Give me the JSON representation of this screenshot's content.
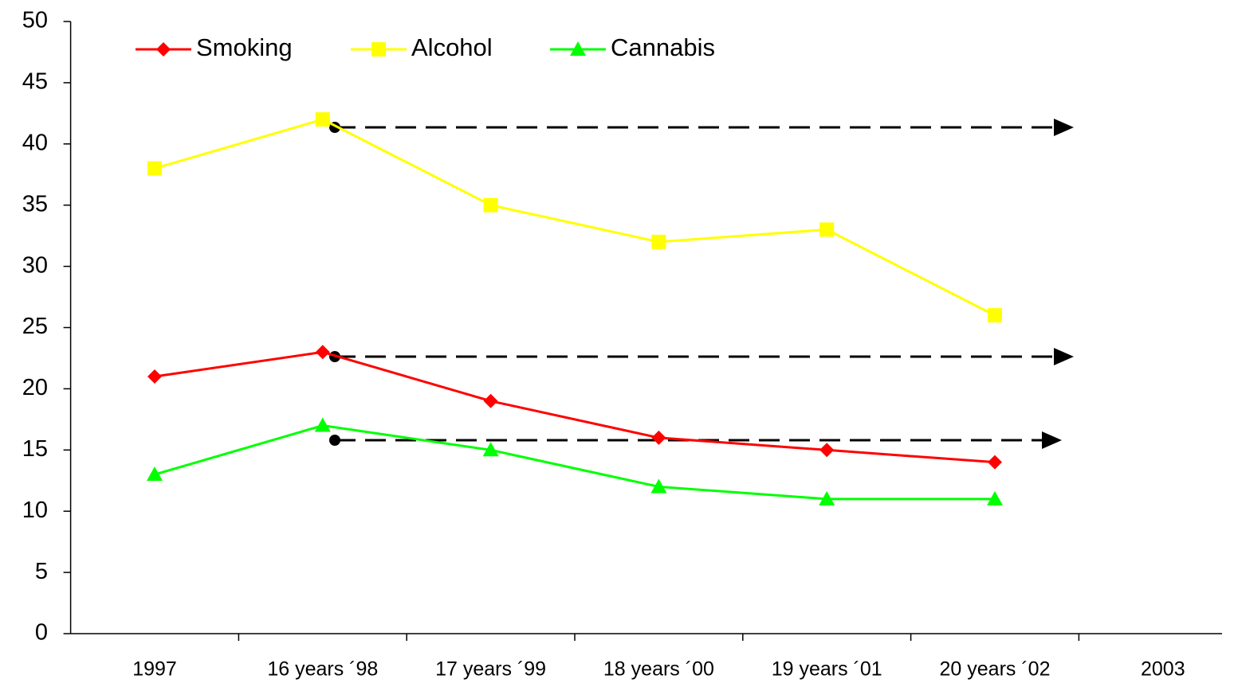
{
  "chart_data": {
    "type": "line",
    "categories": [
      "1997",
      "16 years ´98",
      "17 years ´99",
      "18 years ´00",
      "19 years ´01",
      "20 years ´02",
      "2003"
    ],
    "series": [
      {
        "name": "Smoking",
        "color": "#ff0000",
        "marker": "diamond",
        "values": [
          21,
          23,
          19,
          16,
          15,
          14,
          null
        ]
      },
      {
        "name": "Alcohol",
        "color": "#ffff00",
        "marker": "square",
        "values": [
          38,
          42,
          35,
          32,
          33,
          26,
          null
        ]
      },
      {
        "name": "Cannabis",
        "color": "#00ff00",
        "marker": "triangle",
        "values": [
          13,
          17,
          15,
          12,
          11,
          11,
          null
        ]
      }
    ],
    "ylim": [
      0,
      50
    ],
    "yticks": [
      0,
      5,
      10,
      15,
      20,
      25,
      30,
      35,
      40,
      45,
      50
    ],
    "grid": false,
    "legend": "top-left"
  }
}
